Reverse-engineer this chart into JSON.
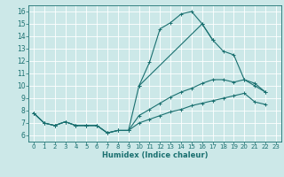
{
  "xlabel": "Humidex (Indice chaleur)",
  "xlim": [
    -0.5,
    23.5
  ],
  "ylim": [
    5.5,
    16.5
  ],
  "xticks": [
    0,
    1,
    2,
    3,
    4,
    5,
    6,
    7,
    8,
    9,
    10,
    11,
    12,
    13,
    14,
    15,
    16,
    17,
    18,
    19,
    20,
    21,
    22,
    23
  ],
  "yticks": [
    6,
    7,
    8,
    9,
    10,
    11,
    12,
    13,
    14,
    15,
    16
  ],
  "bg_color": "#cce8e8",
  "grid_color": "#aad4d4",
  "line_color": "#1a7070",
  "line1_x": [
    0,
    1,
    2,
    3,
    4,
    5,
    6,
    7,
    8,
    9,
    10,
    11,
    12,
    13,
    14,
    15,
    16,
    17
  ],
  "line1_y": [
    7.8,
    7.0,
    6.8,
    7.1,
    6.8,
    6.8,
    6.8,
    6.2,
    6.4,
    6.4,
    10.0,
    11.9,
    14.6,
    15.1,
    15.8,
    16.0,
    15.0,
    13.7
  ],
  "line2_x": [
    10,
    16,
    17,
    18,
    19,
    20,
    21,
    22
  ],
  "line2_y": [
    10.0,
    15.0,
    13.7,
    12.8,
    12.5,
    10.5,
    10.0,
    9.5
  ],
  "line3_x": [
    0,
    1,
    2,
    3,
    4,
    5,
    6,
    7,
    8,
    9,
    10,
    11,
    12,
    13,
    14,
    15,
    16,
    17,
    18,
    19,
    20,
    21,
    22
  ],
  "line3_y": [
    7.8,
    7.0,
    6.8,
    7.1,
    6.8,
    6.8,
    6.8,
    6.2,
    6.4,
    6.4,
    7.6,
    8.1,
    8.6,
    9.1,
    9.5,
    9.8,
    10.2,
    10.5,
    10.5,
    10.3,
    10.5,
    10.2,
    9.5
  ],
  "line4_x": [
    0,
    1,
    2,
    3,
    4,
    5,
    6,
    7,
    8,
    9,
    10,
    11,
    12,
    13,
    14,
    15,
    16,
    17,
    18,
    19,
    20,
    21,
    22
  ],
  "line4_y": [
    7.8,
    7.0,
    6.8,
    7.1,
    6.8,
    6.8,
    6.8,
    6.2,
    6.4,
    6.4,
    7.0,
    7.3,
    7.6,
    7.9,
    8.1,
    8.4,
    8.6,
    8.8,
    9.0,
    9.2,
    9.4,
    8.7,
    8.5
  ],
  "xlabel_fontsize": 6.0,
  "tick_fontsize_x": 5.0,
  "tick_fontsize_y": 5.5
}
